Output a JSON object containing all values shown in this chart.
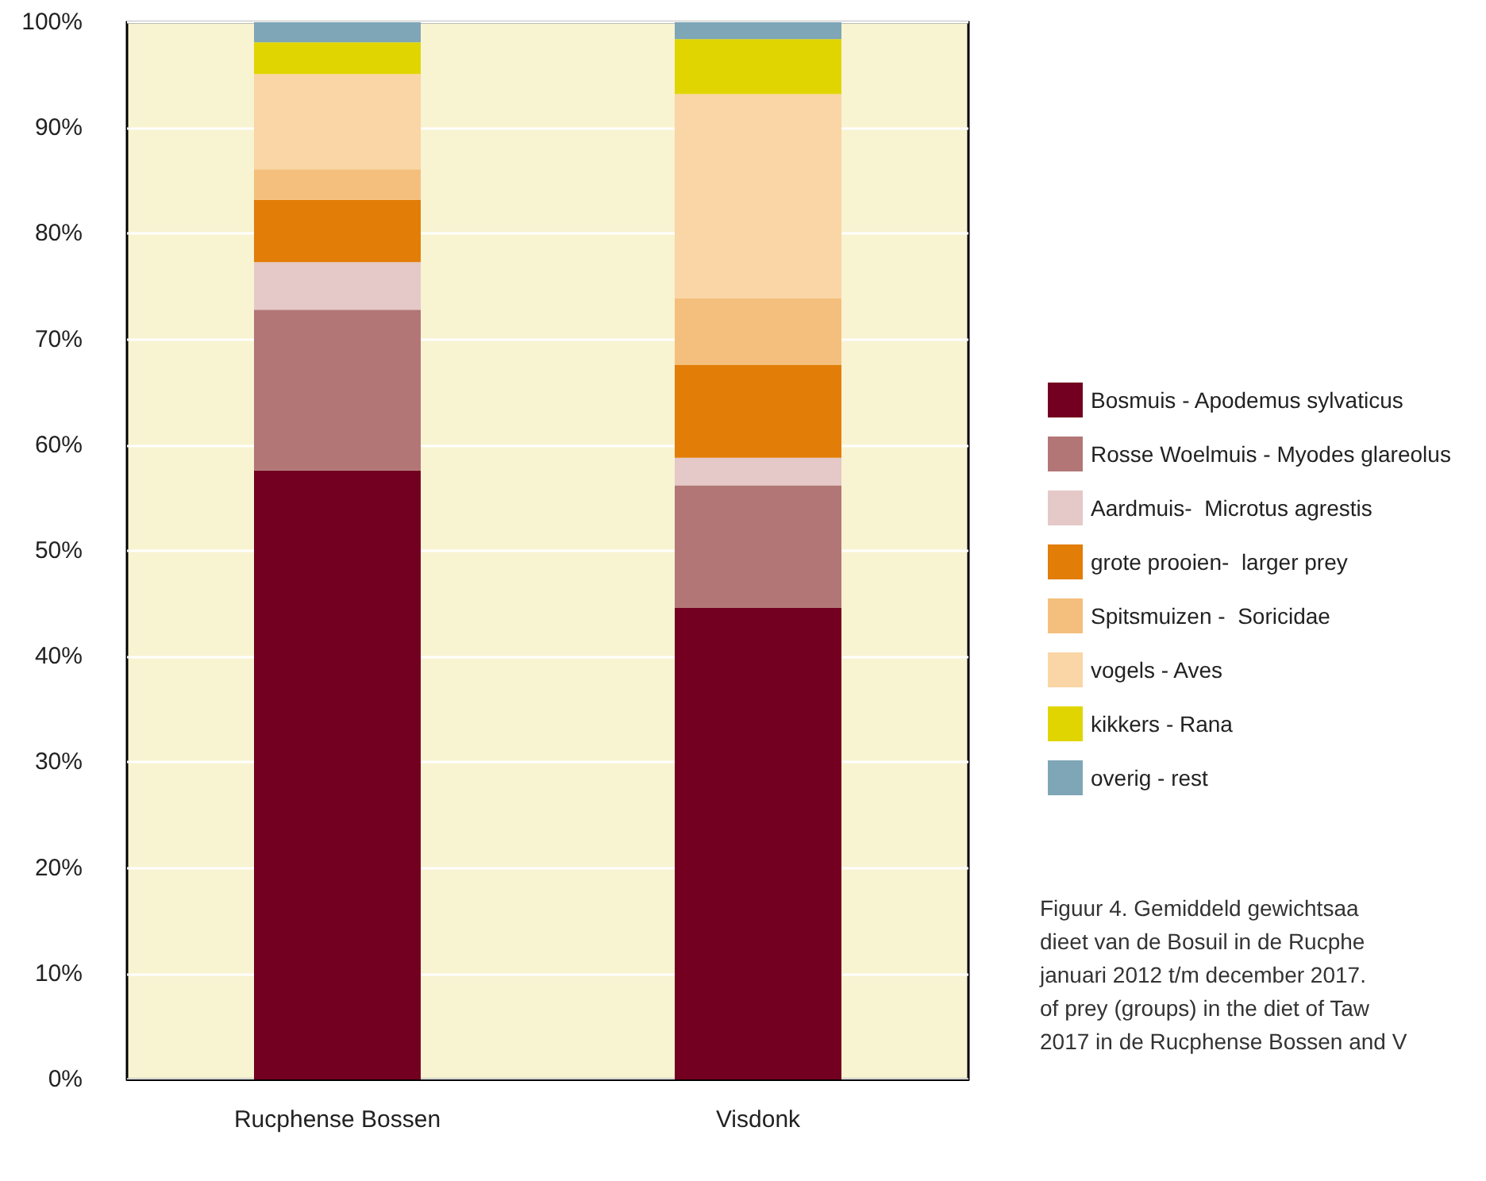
{
  "chart_data": {
    "type": "bar",
    "stacked": true,
    "categories": [
      "Rucphense Bossen",
      "Visdonk"
    ],
    "series": [
      {
        "name": "Bosmuis - Apodemus sylvaticus",
        "color": "#730020",
        "values": [
          57.6,
          44.6
        ]
      },
      {
        "name": "Rosse Woelmuis - Myodes glareolus",
        "color": "#b27677",
        "values": [
          15.2,
          11.6
        ]
      },
      {
        "name": "Aardmuis-  Microtus agrestis",
        "color": "#e5c8c8",
        "values": [
          4.5,
          2.6
        ]
      },
      {
        "name": "grote prooien-  larger prey",
        "color": "#e27d08",
        "values": [
          5.9,
          8.8
        ]
      },
      {
        "name": "Spitsmuizen -  Soricidae",
        "color": "#f4bf7c",
        "values": [
          2.9,
          6.3
        ]
      },
      {
        "name": "vogels - Aves",
        "color": "#fad5a5",
        "values": [
          9.0,
          19.3
        ]
      },
      {
        "name": "kikkers - Rana",
        "color": "#e0d500",
        "values": [
          3.0,
          5.2
        ]
      },
      {
        "name": "overig - rest",
        "color": "#7ea6b7",
        "values": [
          1.9,
          1.6
        ]
      }
    ],
    "ylim": [
      0,
      100
    ],
    "yticks": [
      {
        "value": 0,
        "label": "0%"
      },
      {
        "value": 10,
        "label": "10%"
      },
      {
        "value": 20,
        "label": "20%"
      },
      {
        "value": 30,
        "label": "30%"
      },
      {
        "value": 40,
        "label": "40%"
      },
      {
        "value": 50,
        "label": "50%"
      },
      {
        "value": 60,
        "label": "60%"
      },
      {
        "value": 70,
        "label": "70%"
      },
      {
        "value": 80,
        "label": "80%"
      },
      {
        "value": 90,
        "label": "90%"
      },
      {
        "value": 100,
        "label": "100%"
      }
    ],
    "grid": "y",
    "legend": "right",
    "annotations": [
      "Figuur 4. Gemiddeld gewichtsaa\ndieet van de Bosuil  in de Rucphe\njanuari 2012 t/m december 2017.\nof prey (groups) in the diet of Taw\n2017 in de Rucphense Bossen and V"
    ]
  }
}
